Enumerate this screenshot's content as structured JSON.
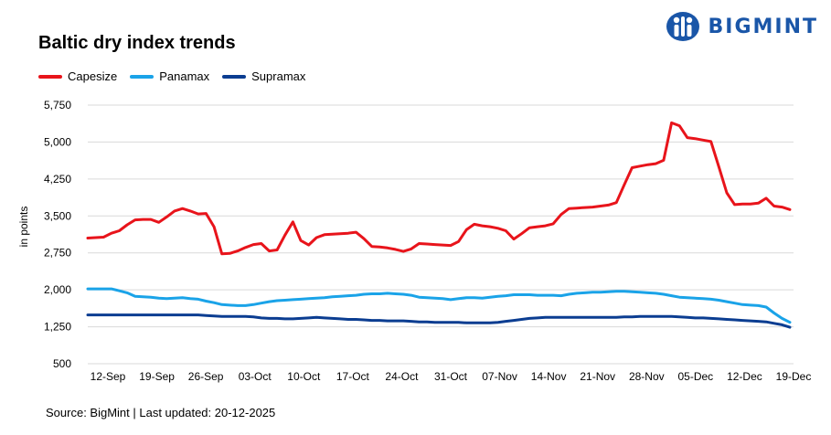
{
  "header": {
    "title": "Baltic dry index trends",
    "logo_text": "BIGMINT"
  },
  "footer": {
    "source": "Source: BigMint | Last updated: 20-12-2025"
  },
  "colors": {
    "capesize": "#e8141b",
    "panamax": "#1aa3e8",
    "supramax": "#0b3d91",
    "brand": "#1a56a8"
  },
  "chart_data": {
    "type": "line",
    "title": "Baltic dry index trends",
    "ylabel": "in points",
    "xlabel": "",
    "ylim": [
      500,
      5750
    ],
    "yticks": [
      500,
      1250,
      2000,
      2750,
      3500,
      4250,
      5000,
      5750
    ],
    "ytick_labels": [
      "500",
      "1,250",
      "2,000",
      "2,750",
      "3,500",
      "4,250",
      "5,000",
      "5,750"
    ],
    "xtick_labels": [
      "12-Sep",
      "19-Sep",
      "26-Sep",
      "03-Oct",
      "10-Oct",
      "17-Oct",
      "24-Oct",
      "31-Oct",
      "07-Nov",
      "14-Nov",
      "21-Nov",
      "28-Nov",
      "05-Dec",
      "12-Dec",
      "19-Dec"
    ],
    "grid": true,
    "legend_position": "top-left",
    "series": [
      {
        "name": "Capesize",
        "color": "#e8141b",
        "values": [
          3050,
          3060,
          3070,
          3150,
          3200,
          3320,
          3420,
          3430,
          3430,
          3370,
          3480,
          3600,
          3650,
          3600,
          3540,
          3550,
          3280,
          2730,
          2740,
          2790,
          2860,
          2920,
          2940,
          2790,
          2810,
          3110,
          3380,
          3000,
          2910,
          3060,
          3120,
          3130,
          3140,
          3150,
          3170,
          3040,
          2880,
          2870,
          2850,
          2820,
          2780,
          2830,
          2940,
          2930,
          2920,
          2910,
          2900,
          2980,
          3220,
          3330,
          3300,
          3280,
          3250,
          3200,
          3030,
          3140,
          3260,
          3280,
          3300,
          3340,
          3530,
          3650,
          3660,
          3670,
          3680,
          3700,
          3720,
          3770,
          4130,
          4480,
          4510,
          4540,
          4560,
          4630,
          5390,
          5330,
          5090,
          5070,
          5040,
          5010,
          4500,
          3970,
          3730,
          3740,
          3740,
          3760,
          3860,
          3700,
          3680,
          3630
        ]
      },
      {
        "name": "Panamax",
        "color": "#1aa3e8",
        "values": [
          2020,
          2020,
          2020,
          2020,
          1980,
          1940,
          1870,
          1860,
          1850,
          1830,
          1820,
          1830,
          1840,
          1820,
          1810,
          1770,
          1740,
          1700,
          1690,
          1680,
          1680,
          1700,
          1730,
          1760,
          1780,
          1790,
          1800,
          1810,
          1820,
          1830,
          1840,
          1860,
          1870,
          1880,
          1890,
          1910,
          1920,
          1920,
          1930,
          1920,
          1910,
          1890,
          1850,
          1840,
          1830,
          1820,
          1800,
          1820,
          1840,
          1840,
          1830,
          1850,
          1870,
          1880,
          1900,
          1900,
          1900,
          1890,
          1890,
          1890,
          1880,
          1910,
          1930,
          1940,
          1950,
          1950,
          1960,
          1970,
          1970,
          1960,
          1950,
          1940,
          1930,
          1910,
          1880,
          1850,
          1840,
          1830,
          1820,
          1810,
          1790,
          1760,
          1730,
          1700,
          1690,
          1680,
          1650,
          1530,
          1420,
          1340
        ]
      },
      {
        "name": "Supramax",
        "color": "#0b3d91",
        "values": [
          1490,
          1490,
          1490,
          1490,
          1490,
          1490,
          1490,
          1490,
          1490,
          1490,
          1490,
          1490,
          1490,
          1490,
          1490,
          1480,
          1470,
          1460,
          1460,
          1460,
          1460,
          1450,
          1430,
          1420,
          1420,
          1410,
          1410,
          1420,
          1430,
          1440,
          1430,
          1420,
          1410,
          1400,
          1400,
          1390,
          1380,
          1380,
          1370,
          1370,
          1370,
          1360,
          1350,
          1350,
          1340,
          1340,
          1340,
          1340,
          1330,
          1330,
          1330,
          1330,
          1340,
          1360,
          1380,
          1400,
          1420,
          1430,
          1440,
          1440,
          1440,
          1440,
          1440,
          1440,
          1440,
          1440,
          1440,
          1440,
          1450,
          1450,
          1460,
          1460,
          1460,
          1460,
          1460,
          1450,
          1440,
          1430,
          1430,
          1420,
          1410,
          1400,
          1390,
          1380,
          1370,
          1360,
          1350,
          1320,
          1290,
          1240
        ]
      }
    ]
  }
}
